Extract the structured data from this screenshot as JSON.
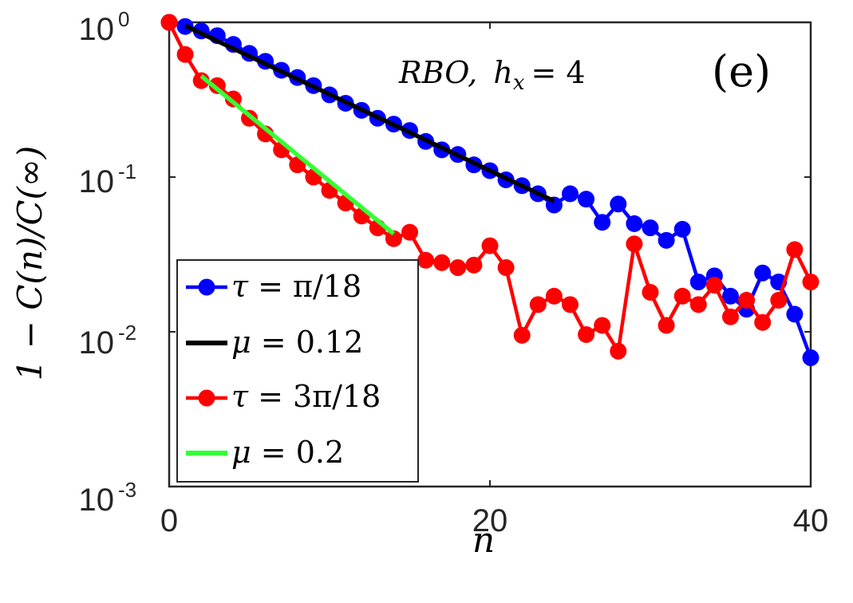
{
  "chart_data": {
    "type": "line",
    "panel_label": "(e)",
    "annotation": "RBO, h_x = 4",
    "annotation_main": "RBO,",
    "annotation_var": "h",
    "annotation_sub": "x",
    "annotation_rest": "= 4",
    "xlabel": "n",
    "ylabel": "1 − C(n)/C(∞)",
    "xlim": [
      0,
      40
    ],
    "ylim": [
      0.001,
      1
    ],
    "yscale": "log",
    "xticks": [
      0,
      20,
      40
    ],
    "xtick_labels": [
      "0",
      "20",
      "40"
    ],
    "yticks": [
      1,
      0.1,
      0.01,
      0.001
    ],
    "ytick_base": "10",
    "ytick_exponents": [
      "0",
      "-1",
      "-2",
      "-3"
    ],
    "legend_location": "lower-left",
    "series": [
      {
        "name": "τ = π/18",
        "color": "#0000ff",
        "marker": "circle",
        "x": [
          0,
          1,
          2,
          3,
          4,
          5,
          6,
          7,
          8,
          9,
          10,
          11,
          12,
          13,
          14,
          15,
          16,
          17,
          18,
          19,
          20,
          21,
          22,
          23,
          24,
          25,
          26,
          27,
          28,
          29,
          30,
          31,
          32,
          33,
          34,
          35,
          36,
          37,
          38,
          39,
          40
        ],
        "y": [
          1.0,
          0.94,
          0.88,
          0.82,
          0.72,
          0.63,
          0.56,
          0.49,
          0.44,
          0.39,
          0.34,
          0.3,
          0.27,
          0.24,
          0.22,
          0.2,
          0.17,
          0.15,
          0.14,
          0.12,
          0.11,
          0.096,
          0.088,
          0.078,
          0.066,
          0.078,
          0.072,
          0.051,
          0.067,
          0.05,
          0.047,
          0.039,
          0.046,
          0.021,
          0.023,
          0.017,
          0.014,
          0.024,
          0.021,
          0.013,
          0.0068
        ]
      },
      {
        "name": "μ = 0.12",
        "color": "#000000",
        "marker": "none",
        "x": [
          1,
          24
        ],
        "y": [
          0.95,
          0.07
        ]
      },
      {
        "name": "τ = 3π/18",
        "color": "#ff0000",
        "marker": "circle",
        "x": [
          0,
          1,
          2,
          3,
          4,
          5,
          6,
          7,
          8,
          9,
          10,
          11,
          12,
          13,
          14,
          15,
          16,
          17,
          18,
          19,
          20,
          21,
          22,
          23,
          24,
          25,
          26,
          27,
          28,
          29,
          30,
          31,
          32,
          33,
          34,
          35,
          36,
          37,
          38,
          39,
          40
        ],
        "y": [
          1.0,
          0.62,
          0.42,
          0.39,
          0.32,
          0.24,
          0.19,
          0.15,
          0.12,
          0.1,
          0.082,
          0.068,
          0.056,
          0.047,
          0.04,
          0.044,
          0.029,
          0.028,
          0.026,
          0.027,
          0.036,
          0.026,
          0.0095,
          0.015,
          0.017,
          0.015,
          0.0096,
          0.011,
          0.0075,
          0.037,
          0.018,
          0.011,
          0.017,
          0.015,
          0.02,
          0.0125,
          0.016,
          0.0115,
          0.016,
          0.034,
          0.021
        ]
      },
      {
        "name": "μ = 0.2",
        "color": "#33ff33",
        "marker": "none",
        "x": [
          2,
          14
        ],
        "y": [
          0.45,
          0.043
        ]
      }
    ],
    "legend": [
      {
        "var": "τ",
        "rest": " = π/18",
        "series": 0
      },
      {
        "var": "μ",
        "rest": " = 0.12",
        "series": 1
      },
      {
        "var": "τ",
        "rest": " = 3π/18",
        "series": 2
      },
      {
        "var": "μ",
        "rest": " = 0.2",
        "series": 3
      }
    ]
  }
}
